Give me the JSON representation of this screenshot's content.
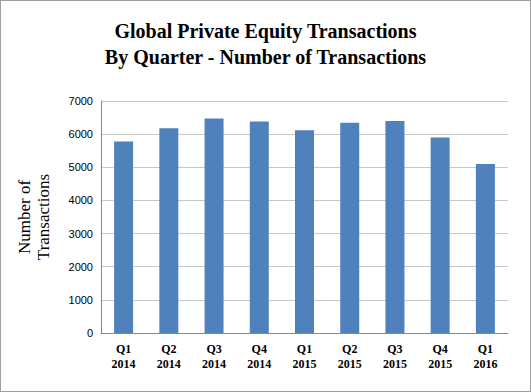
{
  "chart_data": {
    "type": "bar",
    "title": "Global Private Equity Transactions\nBy Quarter - Number of Transactions",
    "y_label": "Number of\nTransactions",
    "categories": [
      "Q1\n2014",
      "Q2\n2014",
      "Q3\n2014",
      "Q4\n2014",
      "Q1\n2015",
      "Q2\n2015",
      "Q3\n2015",
      "Q4\n2015",
      "Q1\n2016"
    ],
    "values": [
      5780,
      6180,
      6470,
      6380,
      6120,
      6340,
      6400,
      5900,
      5100
    ],
    "color": "#4f81bd",
    "ylim": [
      0,
      7000
    ],
    "yticks": [
      0,
      1000,
      2000,
      3000,
      4000,
      5000,
      6000,
      7000
    ],
    "grid": true
  }
}
